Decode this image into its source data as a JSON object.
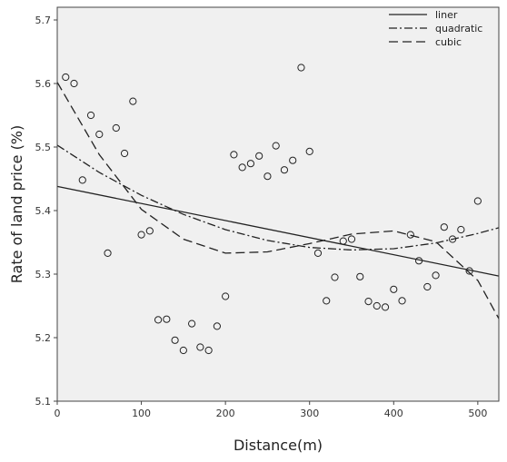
{
  "chart_data": {
    "type": "scatter",
    "xlabel": "Distance(m)",
    "ylabel": "Rate of land price (%)",
    "xlim": [
      0,
      525
    ],
    "ylim": [
      5.1,
      5.72
    ],
    "x_ticks": [
      0,
      100,
      200,
      300,
      400,
      500
    ],
    "y_ticks": [
      5.1,
      5.2,
      5.3,
      5.4,
      5.5,
      5.6,
      5.7
    ],
    "grid": false,
    "background_color": "#f0f0f0",
    "legend_position": "top-right",
    "points": [
      {
        "x": 10,
        "y": 5.61
      },
      {
        "x": 20,
        "y": 5.6
      },
      {
        "x": 30,
        "y": 5.448
      },
      {
        "x": 40,
        "y": 5.55
      },
      {
        "x": 50,
        "y": 5.52
      },
      {
        "x": 60,
        "y": 5.333
      },
      {
        "x": 70,
        "y": 5.53
      },
      {
        "x": 80,
        "y": 5.49
      },
      {
        "x": 90,
        "y": 5.572
      },
      {
        "x": 100,
        "y": 5.362
      },
      {
        "x": 110,
        "y": 5.368
      },
      {
        "x": 120,
        "y": 5.228
      },
      {
        "x": 130,
        "y": 5.229
      },
      {
        "x": 140,
        "y": 5.196
      },
      {
        "x": 150,
        "y": 5.18
      },
      {
        "x": 160,
        "y": 5.222
      },
      {
        "x": 170,
        "y": 5.185
      },
      {
        "x": 180,
        "y": 5.18
      },
      {
        "x": 190,
        "y": 5.218
      },
      {
        "x": 200,
        "y": 5.265
      },
      {
        "x": 210,
        "y": 5.488
      },
      {
        "x": 220,
        "y": 5.468
      },
      {
        "x": 230,
        "y": 5.474
      },
      {
        "x": 240,
        "y": 5.486
      },
      {
        "x": 250,
        "y": 5.454
      },
      {
        "x": 260,
        "y": 5.502
      },
      {
        "x": 270,
        "y": 5.464
      },
      {
        "x": 280,
        "y": 5.479
      },
      {
        "x": 290,
        "y": 5.625
      },
      {
        "x": 300,
        "y": 5.493
      },
      {
        "x": 310,
        "y": 5.333
      },
      {
        "x": 320,
        "y": 5.258
      },
      {
        "x": 330,
        "y": 5.295
      },
      {
        "x": 340,
        "y": 5.352
      },
      {
        "x": 350,
        "y": 5.355
      },
      {
        "x": 360,
        "y": 5.296
      },
      {
        "x": 370,
        "y": 5.257
      },
      {
        "x": 380,
        "y": 5.25
      },
      {
        "x": 390,
        "y": 5.248
      },
      {
        "x": 400,
        "y": 5.276
      },
      {
        "x": 410,
        "y": 5.258
      },
      {
        "x": 420,
        "y": 5.362
      },
      {
        "x": 430,
        "y": 5.321
      },
      {
        "x": 440,
        "y": 5.28
      },
      {
        "x": 450,
        "y": 5.298
      },
      {
        "x": 460,
        "y": 5.374
      },
      {
        "x": 470,
        "y": 5.355
      },
      {
        "x": 480,
        "y": 5.37
      },
      {
        "x": 490,
        "y": 5.305
      },
      {
        "x": 500,
        "y": 5.415
      }
    ],
    "series": [
      {
        "name": "liner",
        "dash": "solid",
        "points": [
          [
            0,
            5.438
          ],
          [
            525,
            5.297
          ]
        ]
      },
      {
        "name": "quadratic",
        "dash": "dash-dot",
        "points": [
          [
            0,
            5.503
          ],
          [
            50,
            5.46
          ],
          [
            100,
            5.424
          ],
          [
            150,
            5.394
          ],
          [
            200,
            5.37
          ],
          [
            250,
            5.353
          ],
          [
            300,
            5.342
          ],
          [
            350,
            5.338
          ],
          [
            400,
            5.34
          ],
          [
            450,
            5.349
          ],
          [
            500,
            5.364
          ],
          [
            525,
            5.373
          ]
        ]
      },
      {
        "name": "cubic",
        "dash": "dashed",
        "points": [
          [
            0,
            5.602
          ],
          [
            50,
            5.488
          ],
          [
            100,
            5.402
          ],
          [
            150,
            5.355
          ],
          [
            200,
            5.333
          ],
          [
            250,
            5.335
          ],
          [
            300,
            5.348
          ],
          [
            350,
            5.363
          ],
          [
            400,
            5.368
          ],
          [
            450,
            5.351
          ],
          [
            500,
            5.29
          ],
          [
            525,
            5.23
          ]
        ]
      }
    ]
  }
}
